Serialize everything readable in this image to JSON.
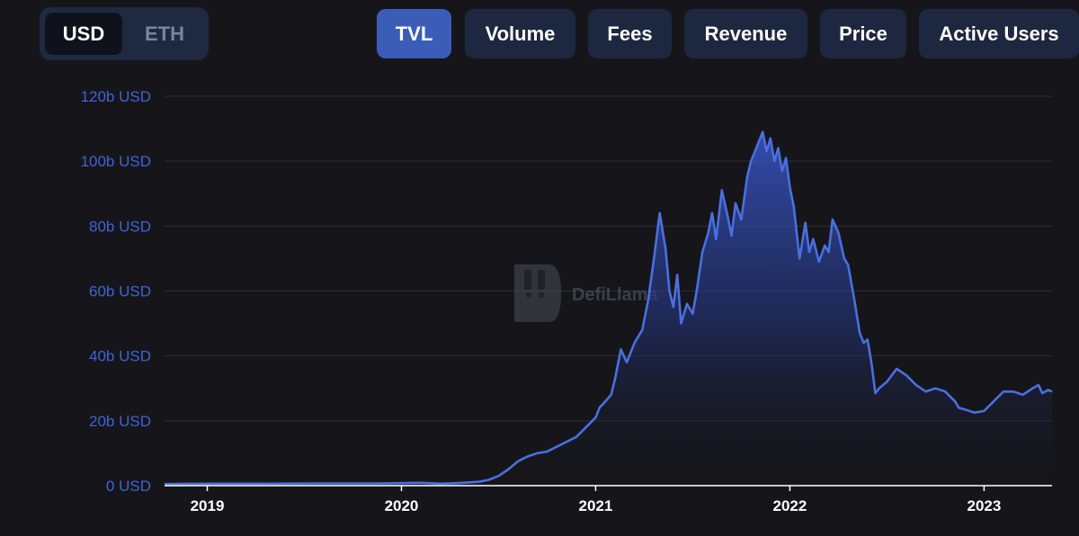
{
  "currency_toggle": {
    "options": [
      "USD",
      "ETH"
    ],
    "selected": "USD"
  },
  "metric_tabs": {
    "items": [
      "TVL",
      "Volume",
      "Fees",
      "Revenue",
      "Price",
      "Active Users"
    ],
    "selected": "TVL"
  },
  "watermark": {
    "text": "DefiLlama"
  },
  "colors": {
    "accent": "#3b5db8",
    "line": "#4a6fe0",
    "background": "#16161a",
    "tab_bg": "#1d2740"
  },
  "chart_data": {
    "type": "area",
    "title": "",
    "xlabel": "",
    "ylabel": "",
    "unit": "USD",
    "ylim": [
      0,
      120
    ],
    "y_tick_labels": [
      "0 USD",
      "20b USD",
      "40b USD",
      "60b USD",
      "80b USD",
      "100b USD",
      "120b USD"
    ],
    "y_tick_values": [
      0,
      20,
      40,
      60,
      80,
      100,
      120
    ],
    "x_tick_labels": [
      "2019",
      "2020",
      "2021",
      "2022",
      "2023"
    ],
    "x_tick_values": [
      2019,
      2020,
      2021,
      2022,
      2023
    ],
    "xlim": [
      2018.78,
      2023.35
    ],
    "grid": true,
    "legend": "none",
    "series": [
      {
        "values_unit": "billions USD",
        "x": [
          2018.78,
          2019.0,
          2019.3,
          2019.6,
          2019.9,
          2020.1,
          2020.2,
          2020.3,
          2020.4,
          2020.45,
          2020.5,
          2020.55,
          2020.6,
          2020.65,
          2020.7,
          2020.75,
          2020.8,
          2020.85,
          2020.9,
          2020.95,
          2021.0,
          2021.02,
          2021.05,
          2021.08,
          2021.1,
          2021.13,
          2021.16,
          2021.2,
          2021.24,
          2021.27,
          2021.3,
          2021.33,
          2021.36,
          2021.38,
          2021.4,
          2021.42,
          2021.44,
          2021.47,
          2021.5,
          2021.52,
          2021.55,
          2021.58,
          2021.6,
          2021.62,
          2021.65,
          2021.68,
          2021.7,
          2021.72,
          2021.75,
          2021.78,
          2021.8,
          2021.82,
          2021.84,
          2021.86,
          2021.88,
          2021.9,
          2021.92,
          2021.94,
          2021.96,
          2021.98,
          2022.0,
          2022.02,
          2022.05,
          2022.08,
          2022.1,
          2022.12,
          2022.15,
          2022.18,
          2022.2,
          2022.22,
          2022.25,
          2022.28,
          2022.3,
          2022.33,
          2022.36,
          2022.38,
          2022.4,
          2022.42,
          2022.44,
          2022.46,
          2022.5,
          2022.55,
          2022.6,
          2022.65,
          2022.7,
          2022.75,
          2022.8,
          2022.85,
          2022.87,
          2022.9,
          2022.95,
          2023.0,
          2023.05,
          2023.1,
          2023.15,
          2023.2,
          2023.25,
          2023.28,
          2023.3,
          2023.33,
          2023.35
        ],
        "values": [
          0.5,
          0.6,
          0.6,
          0.7,
          0.7,
          0.9,
          0.6,
          0.8,
          1.2,
          1.8,
          3.0,
          5.0,
          7.5,
          9.0,
          10.0,
          10.5,
          12.0,
          13.5,
          15.0,
          18.0,
          21.0,
          24.0,
          26.0,
          28.0,
          33.0,
          42.0,
          38.0,
          44.0,
          48.0,
          57.0,
          70.0,
          84.0,
          73.0,
          60.0,
          55.0,
          65.0,
          50.0,
          56.0,
          53.0,
          60.0,
          72.0,
          78.0,
          84.0,
          76.0,
          91.0,
          83.0,
          77.0,
          87.0,
          82.0,
          95.0,
          100.0,
          103.0,
          106.0,
          109.0,
          103.0,
          107.0,
          100.0,
          104.0,
          97.0,
          101.0,
          92.0,
          86.0,
          70.0,
          81.0,
          72.0,
          76.0,
          69.0,
          74.0,
          72.0,
          82.0,
          78.0,
          70.0,
          68.0,
          58.0,
          47.0,
          44.0,
          45.0,
          38.0,
          28.5,
          30.0,
          32.0,
          36.0,
          34.0,
          31.0,
          29.0,
          30.0,
          29.0,
          26.0,
          24.0,
          23.5,
          22.5,
          23.0,
          26.0,
          29.0,
          29.0,
          28.0,
          30.0,
          31.0,
          28.5,
          29.5,
          29.0
        ]
      }
    ]
  }
}
